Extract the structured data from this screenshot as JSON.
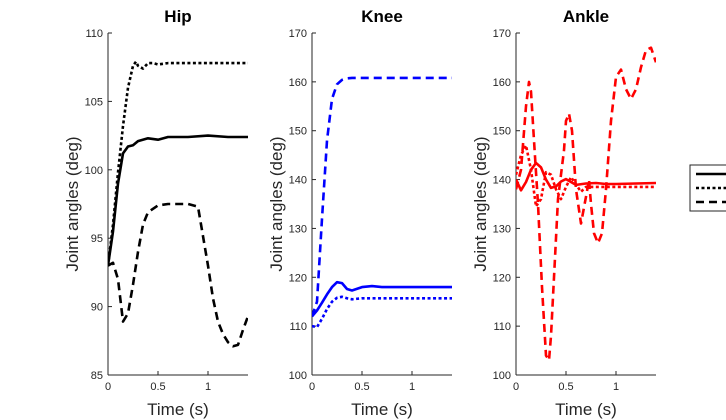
{
  "chart_data": [
    {
      "type": "line",
      "title": "Hip",
      "xlabel": "Time (s)",
      "ylabel": "Joint angles (deg)",
      "xlim": [
        0,
        1.4
      ],
      "ylim": [
        85,
        110
      ],
      "xticks": [
        "0",
        "0.5",
        "1"
      ],
      "yticks": [
        "85",
        "90",
        "95",
        "100",
        "105",
        "110"
      ],
      "color": "#000000",
      "series": [
        {
          "style": "solid",
          "x": [
            0,
            0.05,
            0.1,
            0.15,
            0.2,
            0.25,
            0.3,
            0.4,
            0.5,
            0.6,
            0.8,
            1.0,
            1.2,
            1.4
          ],
          "y": [
            93,
            95.5,
            99,
            101.2,
            101.7,
            101.8,
            102.1,
            102.3,
            102.2,
            102.4,
            102.4,
            102.5,
            102.4,
            102.4
          ]
        },
        {
          "style": "dotted",
          "x": [
            0,
            0.05,
            0.1,
            0.15,
            0.2,
            0.25,
            0.28,
            0.3,
            0.35,
            0.4,
            0.45,
            0.5,
            0.6,
            0.8,
            1.0,
            1.2,
            1.4
          ],
          "y": [
            93,
            96,
            99.8,
            103.2,
            106,
            107.6,
            107.9,
            107.6,
            107.4,
            107.8,
            107.8,
            107.7,
            107.8,
            107.8,
            107.8,
            107.8,
            107.8
          ]
        },
        {
          "style": "dashed",
          "x": [
            0,
            0.05,
            0.1,
            0.15,
            0.2,
            0.25,
            0.3,
            0.35,
            0.4,
            0.5,
            0.6,
            0.7,
            0.8,
            0.9,
            1.0,
            1.05,
            1.1,
            1.15,
            1.2,
            1.25,
            1.3,
            1.35,
            1.4
          ],
          "y": [
            93,
            93.2,
            92,
            88.9,
            89.5,
            91.6,
            94,
            96,
            96.9,
            97.4,
            97.5,
            97.5,
            97.5,
            97.3,
            93,
            90.6,
            88.9,
            88,
            87.4,
            87.1,
            87.2,
            88.3,
            89.3
          ]
        }
      ]
    },
    {
      "type": "line",
      "title": "Knee",
      "xlabel": "Time (s)",
      "ylabel": "Joint angles (deg)",
      "xlim": [
        0,
        1.4
      ],
      "ylim": [
        100,
        170
      ],
      "xticks": [
        "0",
        "0.5",
        "1"
      ],
      "yticks": [
        "100",
        "110",
        "120",
        "130",
        "140",
        "150",
        "160",
        "170"
      ],
      "color": "#0000ff",
      "series": [
        {
          "style": "solid",
          "x": [
            0,
            0.05,
            0.1,
            0.15,
            0.2,
            0.25,
            0.3,
            0.35,
            0.4,
            0.5,
            0.6,
            0.7,
            0.8,
            1.0,
            1.2,
            1.4
          ],
          "y": [
            112,
            113.2,
            114.8,
            116.5,
            118,
            119,
            118.8,
            117.6,
            117.3,
            118,
            118.2,
            118,
            118,
            118,
            118,
            118
          ]
        },
        {
          "style": "dotted",
          "x": [
            0,
            0.05,
            0.1,
            0.15,
            0.2,
            0.25,
            0.3,
            0.35,
            0.4,
            0.5,
            0.6,
            0.8,
            1.0,
            1.2,
            1.4
          ],
          "y": [
            110,
            109.8,
            111.5,
            113.5,
            115,
            115.8,
            116,
            115.7,
            115.5,
            115.7,
            115.7,
            115.7,
            115.7,
            115.7,
            115.7
          ]
        },
        {
          "style": "dashed",
          "x": [
            0,
            0.05,
            0.1,
            0.15,
            0.2,
            0.25,
            0.3,
            0.35,
            0.4,
            0.5,
            0.6,
            0.8,
            1.0,
            1.2,
            1.4
          ],
          "y": [
            112,
            115,
            132,
            148,
            156.5,
            159.5,
            160.4,
            160.7,
            160.8,
            160.8,
            160.8,
            160.8,
            160.8,
            160.8,
            160.8
          ]
        }
      ]
    },
    {
      "type": "line",
      "title": "Ankle",
      "xlabel": "Time (s)",
      "ylabel": "Joint angles (deg)",
      "xlim": [
        0,
        1.4
      ],
      "ylim": [
        100,
        170
      ],
      "xticks": [
        "0",
        "0.5",
        "1"
      ],
      "yticks": [
        "100",
        "110",
        "120",
        "130",
        "140",
        "150",
        "160",
        "170"
      ],
      "color": "#ff0000",
      "series": [
        {
          "style": "solid",
          "x": [
            0,
            0.05,
            0.1,
            0.15,
            0.2,
            0.25,
            0.3,
            0.35,
            0.4,
            0.45,
            0.5,
            0.55,
            0.6,
            0.7,
            0.8,
            0.9,
            1.0,
            1.2,
            1.4
          ],
          "y": [
            140,
            137.8,
            139.5,
            142,
            143.4,
            142.5,
            140,
            138.3,
            138.6,
            139.6,
            140.1,
            139.5,
            138.9,
            139.2,
            139.3,
            139.1,
            139.1,
            139.2,
            139.3
          ]
        },
        {
          "style": "dotted",
          "x": [
            0,
            0.05,
            0.1,
            0.15,
            0.2,
            0.25,
            0.3,
            0.35,
            0.4,
            0.45,
            0.5,
            0.55,
            0.6,
            0.65,
            0.7,
            0.8,
            1.0,
            1.2,
            1.4
          ],
          "y": [
            141,
            145,
            147,
            142,
            134.5,
            136,
            141.5,
            141,
            138,
            136,
            138.5,
            140.5,
            139,
            137.5,
            138.5,
            138.5,
            138.5,
            138.5,
            138.5
          ]
        },
        {
          "style": "dashed",
          "x": [
            0,
            0.05,
            0.1,
            0.13,
            0.15,
            0.18,
            0.22,
            0.26,
            0.3,
            0.33,
            0.35,
            0.38,
            0.42,
            0.45,
            0.48,
            0.5,
            0.53,
            0.56,
            0.6,
            0.65,
            0.7,
            0.73,
            0.75,
            0.78,
            0.82,
            0.86,
            0.9,
            0.95,
            1.0,
            1.05,
            1.1,
            1.15,
            1.2,
            1.25,
            1.3,
            1.35,
            1.4
          ],
          "y": [
            138,
            142,
            155,
            160,
            158,
            148,
            135,
            118,
            104,
            103,
            108,
            120,
            136,
            141,
            146,
            152,
            153.5,
            150,
            138,
            131,
            136.5,
            140,
            135,
            129,
            127,
            129,
            138,
            152,
            161,
            162.5,
            158.5,
            156.5,
            158.5,
            163,
            166.5,
            167,
            164
          ]
        }
      ]
    }
  ]
}
